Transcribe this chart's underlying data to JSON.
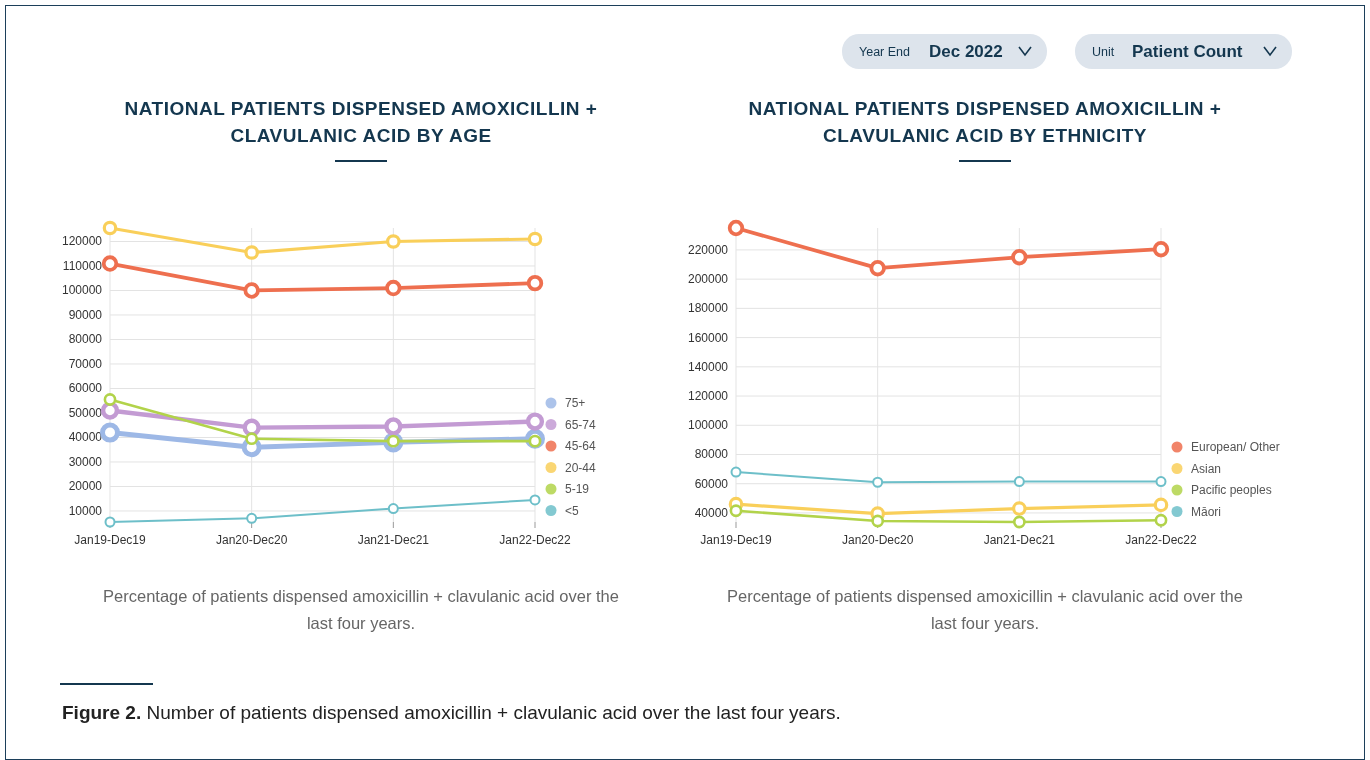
{
  "chart_data": [
    {
      "type": "other",
      "annotations": [
        "Year End",
        "Dec 2022",
        "Unit",
        "Patient Count"
      ]
    },
    {
      "type": "line",
      "title": "NATIONAL PATIENTS DISPENSED AMOXICILLIN + CLAVULANIC ACID BY AGE",
      "categories": [
        "Jan19-Dec19",
        "Jan20-Dec20",
        "Jan21-Dec21",
        "Jan22-Dec22"
      ],
      "ylim": [
        5500,
        125500
      ],
      "yticks": [
        10000,
        20000,
        30000,
        40000,
        50000,
        60000,
        70000,
        80000,
        90000,
        100000,
        110000,
        120000
      ],
      "grid": true,
      "legend": "bottom right",
      "marker": "circle",
      "annotations": [
        "Percentage of patients dispensed amoxicillin + clavulanic acid over the last four years."
      ],
      "series": [
        {
          "name": "75+",
          "color": "#9db8e6",
          "values": [
            42000,
            36000,
            38000,
            39500
          ]
        },
        {
          "name": "65-74",
          "color": "#c39bd3",
          "values": [
            51000,
            44000,
            44500,
            46500
          ]
        },
        {
          "name": "45-64",
          "color": "#ee6f4f",
          "values": [
            111000,
            100000,
            101000,
            103000
          ]
        },
        {
          "name": "20-44",
          "color": "#f9cf5a",
          "values": [
            125500,
            115500,
            120000,
            121000
          ]
        },
        {
          "name": "5-19",
          "color": "#b2d34a",
          "values": [
            55500,
            39500,
            38500,
            38500
          ]
        },
        {
          "name": "<5",
          "color": "#6dbfc9",
          "values": [
            5500,
            7000,
            11000,
            14500
          ]
        }
      ]
    },
    {
      "type": "line",
      "title": "NATIONAL PATIENTS DISPENSED AMOXICILLIN + CLAVULANIC ACID BY ETHNICITY",
      "categories": [
        "Jan19-Dec19",
        "Jan20-Dec20",
        "Jan21-Dec21",
        "Jan22-Dec22"
      ],
      "ylim": [
        33800,
        235000
      ],
      "yticks": [
        40000,
        60000,
        80000,
        100000,
        120000,
        140000,
        160000,
        180000,
        200000,
        220000
      ],
      "grid": true,
      "legend": "bottom right",
      "marker": "circle",
      "annotations": [
        "Percentage of patients dispensed amoxicillin + clavulanic acid over the last four years."
      ],
      "series": [
        {
          "name": "European/ Other",
          "color": "#ee6f4f",
          "values": [
            235000,
            207500,
            215000,
            220500
          ]
        },
        {
          "name": "Asian",
          "color": "#f9cf5a",
          "values": [
            46000,
            39500,
            43000,
            45500
          ]
        },
        {
          "name": "Pacific peoples",
          "color": "#b2d34a",
          "values": [
            41500,
            34500,
            33800,
            35000
          ]
        },
        {
          "name": "Māori",
          "color": "#6dbfc9",
          "values": [
            68000,
            61000,
            61500,
            61500
          ]
        }
      ]
    },
    {
      "type": "other",
      "annotations": [
        "Figure 2.",
        "Number of patients dispensed amoxicillin + clavulanic acid over the last four years."
      ]
    }
  ]
}
